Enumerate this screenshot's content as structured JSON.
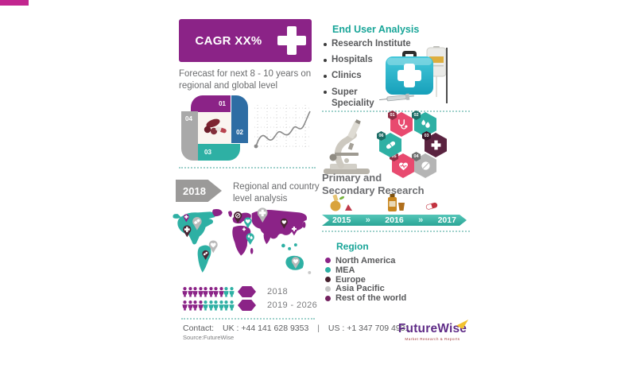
{
  "palette": {
    "purple": "#8b2387",
    "teal": "#2eb0a4",
    "teal_dark": "#18a598",
    "blue": "#2e6da4",
    "gray": "#9d9d9d",
    "maroon": "#4a2433",
    "pink": "#e84a6f",
    "magenta": "#c2268f",
    "yellow": "#f2c230",
    "logo_purple": "#5f2c87",
    "dotted": "#9fd1cb"
  },
  "cagr": {
    "label": "CAGR XX%",
    "icon": "plus-cross-icon"
  },
  "forecast": {
    "text": "Forecast for next 8 - 10  years on regional and global level"
  },
  "process": {
    "steps": [
      "01",
      "02",
      "03",
      "04"
    ],
    "center_icon": "pills-icon"
  },
  "year_arrow": {
    "year": "2018",
    "label": "Regional and country level analysis"
  },
  "population": {
    "rows": [
      {
        "label": "2018",
        "purple": 8,
        "teal": 2
      },
      {
        "label": "2019 - 2026",
        "purple": 4,
        "teal": 6
      }
    ]
  },
  "end_user": {
    "title": "End User Analysis",
    "items": [
      "Research Institute",
      "Hospitals",
      "Clinics",
      "Super Speciality"
    ]
  },
  "research": {
    "title_line1": "Primary and",
    "title_line2": "Secondary Research",
    "hexagons": [
      {
        "num": "01",
        "icon": "stethoscope-icon",
        "color": "#e84a6f"
      },
      {
        "num": "02",
        "icon": "drops-icon",
        "color": "#2eb0a4"
      },
      {
        "num": "03",
        "icon": "cross-icon",
        "color": "#5a2340"
      },
      {
        "num": "04",
        "icon": "tablet-icon",
        "color": "#b5b5b5"
      },
      {
        "num": "05",
        "icon": "heartbeat-icon",
        "color": "#e84a6f"
      },
      {
        "num": "06",
        "icon": "capsule-icon",
        "color": "#2eb0a4"
      }
    ]
  },
  "timeline": {
    "years": [
      "2015",
      "2016",
      "2017"
    ],
    "chevron": "»"
  },
  "region": {
    "title": "Region",
    "items": [
      {
        "label": "North America",
        "color": "#8b2387"
      },
      {
        "label": "MEA",
        "color": "#2eb0a4"
      },
      {
        "label": "Europe",
        "color": "#47202e"
      },
      {
        "label": "Asia Pacific",
        "color": "#c6c6c6"
      },
      {
        "label": "Rest of the world",
        "color": "#73215f"
      }
    ]
  },
  "contact": {
    "label": "Contact:",
    "uk": "UK : +44 141 628 9353",
    "divider": "|",
    "us": "US : +1 347 709 4931",
    "source": "Source:FutureWise"
  },
  "logo": {
    "name": "FutureWise",
    "tagline": "Market Research & Reports"
  }
}
